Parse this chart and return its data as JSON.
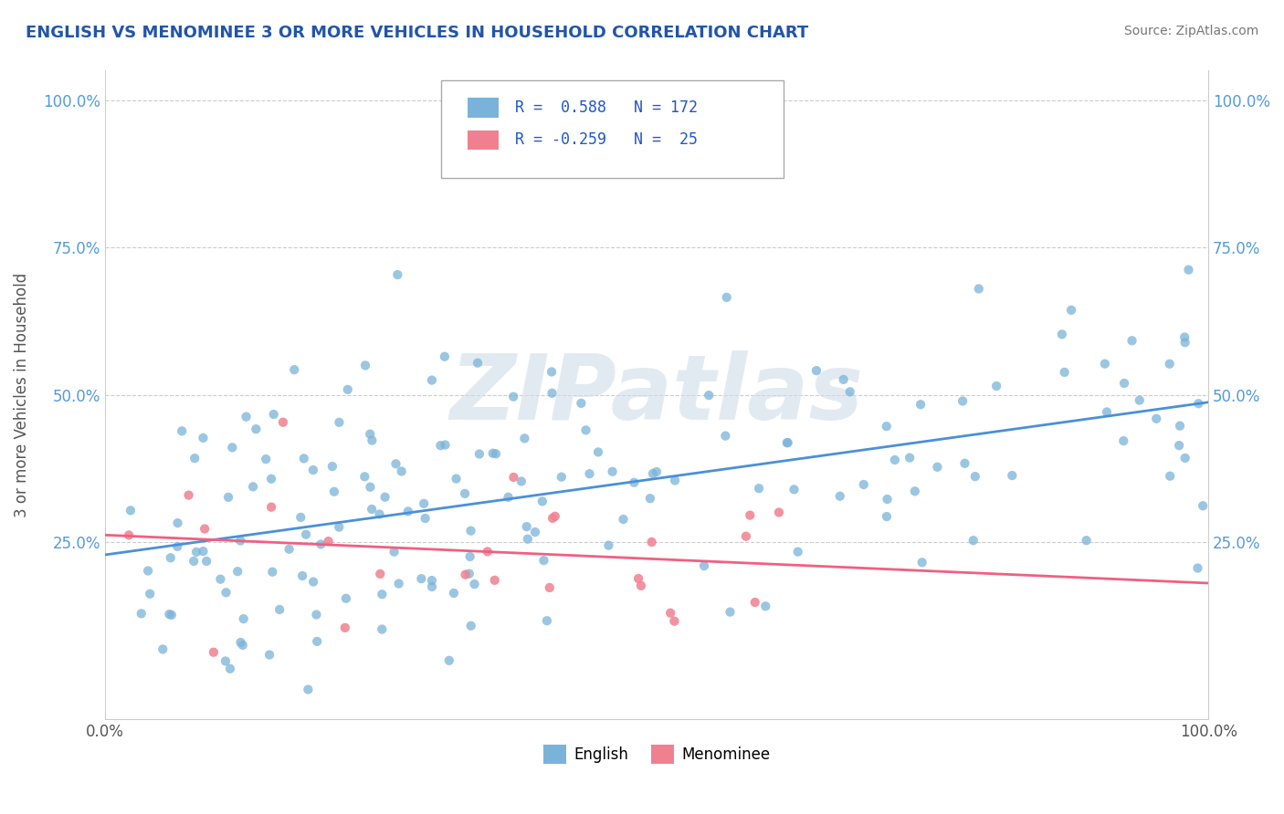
{
  "title": "ENGLISH VS MENOMINEE 3 OR MORE VEHICLES IN HOUSEHOLD CORRELATION CHART",
  "source_text": "Source: ZipAtlas.com",
  "ylabel": "3 or more Vehicles in Household",
  "xlim": [
    0.0,
    1.0
  ],
  "ylim": [
    -0.05,
    1.05
  ],
  "xtick_labels": [
    "0.0%",
    "100.0%"
  ],
  "ytick_labels": [
    "25.0%",
    "50.0%",
    "75.0%",
    "100.0%"
  ],
  "ytick_positions": [
    0.25,
    0.5,
    0.75,
    1.0
  ],
  "english_r": 0.588,
  "menominee_r": -0.259,
  "english_n": 172,
  "menominee_n": 25,
  "english_color": "#7ab3d9",
  "menominee_color": "#f08090",
  "english_line_color": "#4a90d9",
  "menominee_line_color": "#f06080",
  "background_color": "#ffffff",
  "grid_color": "#cccccc",
  "title_color": "#2255aa",
  "watermark_text": "ZIPatlas",
  "watermark_color": "#d0dce8"
}
